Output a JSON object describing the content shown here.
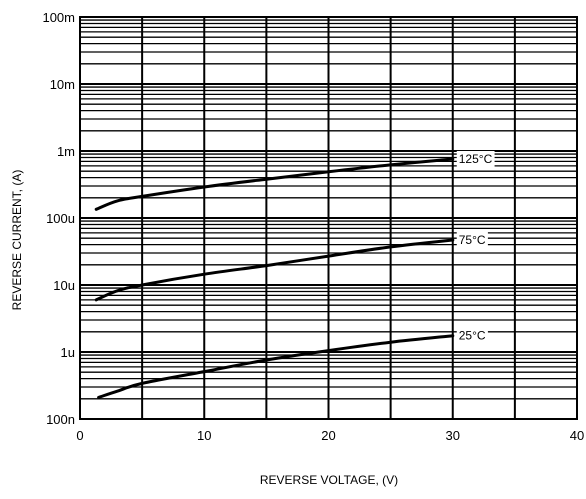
{
  "chart_data": {
    "type": "line",
    "xlabel": "REVERSE VOLTAGE, (V)",
    "ylabel": "REVERSE CURRENT, (A)",
    "xlim": [
      0,
      40
    ],
    "ylim": [
      1e-07,
      0.1
    ],
    "y_scale": "log",
    "grid": true,
    "x_ticks": [
      {
        "value": 0,
        "label": "0"
      },
      {
        "value": 10,
        "label": "10"
      },
      {
        "value": 20,
        "label": "20"
      },
      {
        "value": 30,
        "label": "30"
      },
      {
        "value": 40,
        "label": "40"
      }
    ],
    "y_ticks": [
      {
        "value": 1e-07,
        "label": "100n"
      },
      {
        "value": 1e-06,
        "label": "1u"
      },
      {
        "value": 1e-05,
        "label": "10u"
      },
      {
        "value": 0.0001,
        "label": "100u"
      },
      {
        "value": 0.001,
        "label": "1m"
      },
      {
        "value": 0.01,
        "label": "10m"
      },
      {
        "value": 0.1,
        "label": "100m"
      }
    ],
    "series": [
      {
        "name": "125°C",
        "color": "#000000",
        "x": [
          1.3,
          3,
          5,
          10,
          15,
          20,
          25,
          30
        ],
        "y": [
          0.000135,
          0.00018,
          0.00021,
          0.00029,
          0.00038,
          0.00049,
          0.00062,
          0.00076
        ]
      },
      {
        "name": "75°C",
        "color": "#000000",
        "x": [
          1.3,
          3,
          5,
          10,
          15,
          20,
          25,
          30
        ],
        "y": [
          6e-06,
          8.2e-06,
          1e-05,
          1.45e-05,
          1.95e-05,
          2.7e-05,
          3.7e-05,
          4.7e-05
        ]
      },
      {
        "name": "25°C",
        "color": "#000000",
        "x": [
          1.5,
          3,
          5,
          10,
          15,
          20,
          25,
          30
        ],
        "y": [
          2.1e-07,
          2.6e-07,
          3.4e-07,
          5.1e-07,
          7.6e-07,
          1.05e-06,
          1.4e-06,
          1.75e-06
        ]
      }
    ]
  }
}
